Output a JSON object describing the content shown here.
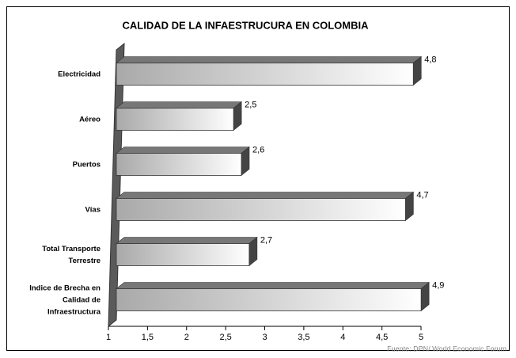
{
  "chart_data": {
    "type": "hbar3d",
    "title": "CALIDAD DE LA INFAESTRUCURA EN COLOMBIA",
    "categories": [
      "Electricidad",
      "Aéreo",
      "Puertos",
      "Vías",
      "Total Transporte Terrestre",
      "Indice de Brecha en Calidad de Infraestructura"
    ],
    "values": [
      4.8,
      2.5,
      2.6,
      4.7,
      2.7,
      4.9
    ],
    "value_labels": [
      "4,8",
      "2,5",
      "2,6",
      "4,7",
      "2,7",
      "4,9"
    ],
    "xlim": [
      1,
      5
    ],
    "xticks": [
      1,
      {
        "value": 1.5,
        "label": "1,5"
      },
      2,
      {
        "value": 2.5,
        "label": "2,5"
      },
      3,
      {
        "value": 3.5,
        "label": "3,5"
      },
      4,
      {
        "value": 4.5,
        "label": "4,5"
      },
      5
    ],
    "source": "Fuente: DPN/ World Economic Forum"
  }
}
